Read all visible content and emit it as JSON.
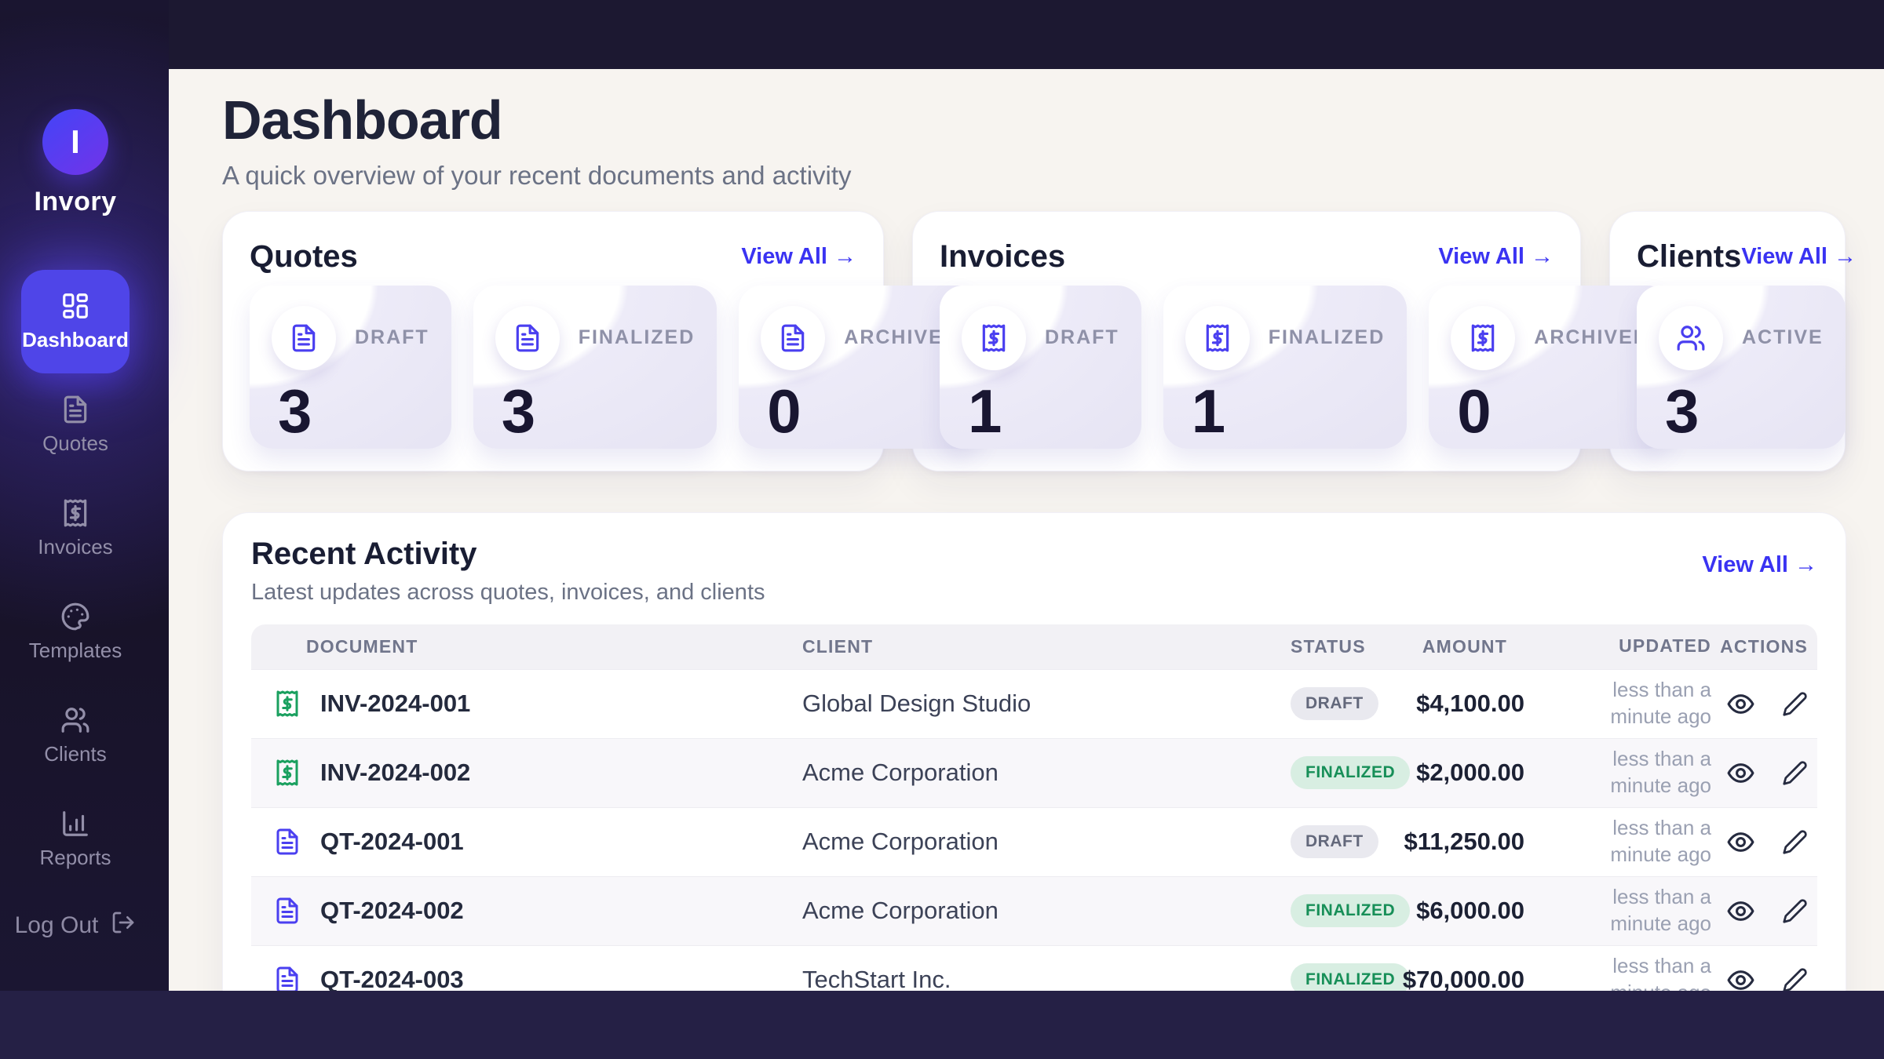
{
  "brand": {
    "initial": "I",
    "name": "Invory"
  },
  "sidebar": {
    "items": [
      {
        "id": "dashboard",
        "label": "Dashboard",
        "icon": "layout-dashboard",
        "active": true
      },
      {
        "id": "quotes",
        "label": "Quotes",
        "icon": "file-text",
        "active": false
      },
      {
        "id": "invoices",
        "label": "Invoices",
        "icon": "receipt",
        "active": false
      },
      {
        "id": "templates",
        "label": "Templates",
        "icon": "palette",
        "active": false
      },
      {
        "id": "clients",
        "label": "Clients",
        "icon": "users",
        "active": false
      },
      {
        "id": "reports",
        "label": "Reports",
        "icon": "bar-chart",
        "active": false
      }
    ],
    "logout_label": "Log Out",
    "logout_icon": "log-out"
  },
  "header": {
    "title": "Dashboard",
    "subtitle": "A quick overview of your recent documents and activity"
  },
  "summary_cards": [
    {
      "id": "quotes",
      "title": "Quotes",
      "view_all": "View All →",
      "icon": "file-text",
      "stats": [
        {
          "label": "DRAFT",
          "value": "3"
        },
        {
          "label": "FINALIZED",
          "value": "3"
        },
        {
          "label": "ARCHIVED",
          "value": "0"
        }
      ]
    },
    {
      "id": "invoices",
      "title": "Invoices",
      "view_all": "View All →",
      "icon": "receipt",
      "stats": [
        {
          "label": "DRAFT",
          "value": "1"
        },
        {
          "label": "FINALIZED",
          "value": "1"
        },
        {
          "label": "ARCHIVED",
          "value": "0"
        }
      ]
    },
    {
      "id": "clients",
      "title": "Clients",
      "view_all": "View All →",
      "icon": "users",
      "stats": [
        {
          "label": "ACTIVE",
          "value": "3"
        }
      ]
    }
  ],
  "recent": {
    "title": "Recent Activity",
    "subtitle": "Latest updates across quotes, invoices, and clients",
    "view_all": "View All →",
    "columns": [
      "DOCUMENT",
      "CLIENT",
      "STATUS",
      "AMOUNT",
      "UPDATED",
      "ACTIONS"
    ],
    "rows": [
      {
        "document": "INV-2024-001",
        "type": "invoice",
        "client": "Global Design Studio",
        "status": "DRAFT",
        "amount": "$4,100.00",
        "updated": "less than a minute ago"
      },
      {
        "document": "INV-2024-002",
        "type": "invoice",
        "client": "Acme Corporation",
        "status": "FINALIZED",
        "amount": "$2,000.00",
        "updated": "less than a minute ago"
      },
      {
        "document": "QT-2024-001",
        "type": "quote",
        "client": "Acme Corporation",
        "status": "DRAFT",
        "amount": "$11,250.00",
        "updated": "less than a minute ago"
      },
      {
        "document": "QT-2024-002",
        "type": "quote",
        "client": "Acme Corporation",
        "status": "FINALIZED",
        "amount": "$6,000.00",
        "updated": "less than a minute ago"
      },
      {
        "document": "QT-2024-003",
        "type": "quote",
        "client": "TechStart Inc.",
        "status": "FINALIZED",
        "amount": "$70,000.00",
        "updated": "less than a minute ago"
      }
    ]
  },
  "colors": {
    "accent": "#4f45e8",
    "link": "#3a33f2",
    "page_dark": "#1c1831",
    "bottom_band": "#252045",
    "main_bg": "#f7f4f0",
    "invoice_icon_green": "#1aa05f",
    "quote_icon_indigo": "#4a3ff0",
    "badge_draft_bg": "#e9e9ef",
    "badge_draft_text": "#63687b",
    "badge_finalized_bg": "#d8eee2",
    "badge_finalized_text": "#178f58"
  }
}
